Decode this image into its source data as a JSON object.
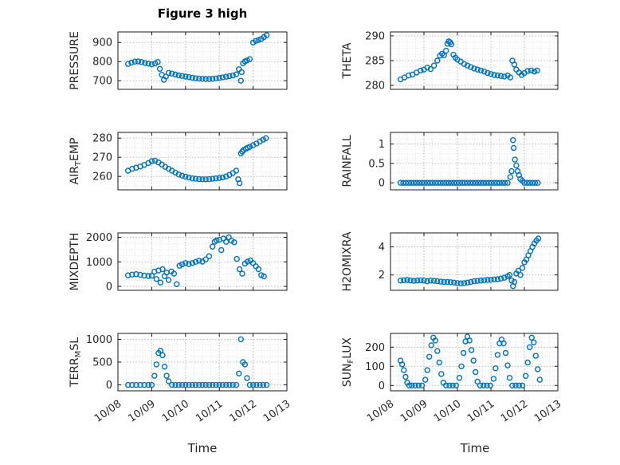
{
  "title": "Figure 3 high",
  "xlabel": "Time",
  "colors": {
    "marker": "#0072BD",
    "axis": "#1a1a1a",
    "tick_text": "#262626",
    "grid_major": "#b5b5b5",
    "grid_minor": "#dedede"
  },
  "x_ticks": {
    "values": [
      0,
      1,
      2,
      3,
      4,
      5
    ],
    "labels": [
      "10/08",
      "10/09",
      "10/10",
      "10/11",
      "10/12",
      "10/13"
    ]
  },
  "xlim": [
    0,
    5
  ],
  "chart_data": [
    {
      "type": "scatter",
      "name": "pressure",
      "ylabel": "PRESSURE",
      "ylim": [
        655,
        955
      ],
      "yticks": [
        700,
        800,
        900
      ],
      "x": [
        0.3,
        0.4,
        0.5,
        0.6,
        0.7,
        0.8,
        0.9,
        1.0,
        1.1,
        1.18,
        1.24,
        1.3,
        1.36,
        1.42,
        1.5,
        1.6,
        1.7,
        1.8,
        1.9,
        2.0,
        2.1,
        2.2,
        2.3,
        2.4,
        2.5,
        2.6,
        2.7,
        2.8,
        2.9,
        3.0,
        3.1,
        3.2,
        3.3,
        3.4,
        3.5,
        3.58,
        3.64,
        3.66,
        3.7,
        3.76,
        3.82,
        3.9,
        4.0,
        4.08,
        4.16,
        4.24,
        4.32,
        4.4
      ],
      "y": [
        788,
        795,
        800,
        801,
        798,
        793,
        789,
        786,
        790,
        798,
        762,
        731,
        705,
        722,
        741,
        737,
        732,
        728,
        725,
        722,
        719,
        716,
        713,
        711,
        710,
        709,
        709,
        710,
        712,
        715,
        718,
        721,
        724,
        727,
        733,
        760,
        700,
        745,
        791,
        801,
        806,
        813,
        899,
        908,
        913,
        918,
        928,
        938
      ]
    },
    {
      "type": "scatter",
      "name": "theta",
      "ylabel": "THETA",
      "ylim": [
        279.2,
        290.8
      ],
      "yticks": [
        280,
        285,
        290
      ],
      "x": [
        0.3,
        0.42,
        0.54,
        0.66,
        0.78,
        0.9,
        1.0,
        1.1,
        1.2,
        1.3,
        1.4,
        1.48,
        1.54,
        1.6,
        1.66,
        1.7,
        1.74,
        1.78,
        1.82,
        1.88,
        1.94,
        2.0,
        2.1,
        2.2,
        2.3,
        2.4,
        2.5,
        2.6,
        2.7,
        2.8,
        2.9,
        3.0,
        3.1,
        3.2,
        3.3,
        3.4,
        3.5,
        3.58,
        3.64,
        3.7,
        3.76,
        3.84,
        3.92,
        4.0,
        4.1,
        4.2,
        4.3,
        4.38
      ],
      "y": [
        281.2,
        281.6,
        282,
        282.2,
        282.6,
        283,
        283.2,
        283.6,
        283.3,
        284,
        285,
        286,
        286.4,
        286.1,
        287,
        288.4,
        288.9,
        288.7,
        288.3,
        286.2,
        285.6,
        285.2,
        284.8,
        284.3,
        284,
        283.7,
        283.4,
        283.2,
        283,
        282.8,
        282.5,
        282.3,
        282.1,
        282,
        281.9,
        281.8,
        282,
        281.6,
        285,
        284.2,
        283.2,
        282.6,
        282.1,
        282.5,
        282.9,
        283,
        282.8,
        283
      ]
    },
    {
      "type": "scatter",
      "name": "air-temp",
      "ylabel": "AIR_{T}EMP",
      "ylim": [
        253,
        283
      ],
      "yticks": [
        260,
        270,
        280
      ],
      "x": [
        0.3,
        0.42,
        0.54,
        0.66,
        0.78,
        0.9,
        1.0,
        1.1,
        1.2,
        1.3,
        1.4,
        1.5,
        1.6,
        1.7,
        1.8,
        1.9,
        2.0,
        2.1,
        2.2,
        2.3,
        2.4,
        2.5,
        2.6,
        2.7,
        2.8,
        2.9,
        3.0,
        3.1,
        3.2,
        3.3,
        3.4,
        3.5,
        3.56,
        3.6,
        3.64,
        3.68,
        3.72,
        3.78,
        3.84,
        3.9,
        4.0,
        4.1,
        4.2,
        4.3,
        4.38
      ],
      "y": [
        263,
        264,
        264.6,
        265.2,
        266,
        267,
        268,
        268.2,
        267.3,
        266.2,
        265,
        264,
        263,
        262,
        261,
        260.4,
        259.9,
        259.4,
        259,
        258.8,
        258.6,
        258.5,
        258.5,
        258.6,
        258.8,
        259,
        259.2,
        259.5,
        260,
        260.8,
        261.8,
        263,
        258.5,
        256.5,
        272,
        273,
        273.8,
        274.4,
        275,
        275.5,
        276.3,
        277.2,
        278.2,
        279.2,
        280
      ]
    },
    {
      "type": "scatter",
      "name": "rainfall",
      "ylabel": "RAINFALL",
      "ylim": [
        -0.18,
        1.3
      ],
      "yticks": [
        0,
        0.5,
        1
      ],
      "x": [
        0.3,
        0.38,
        0.46,
        0.54,
        0.62,
        0.7,
        0.78,
        0.86,
        0.94,
        1.02,
        1.1,
        1.18,
        1.26,
        1.34,
        1.42,
        1.5,
        1.58,
        1.66,
        1.74,
        1.82,
        1.9,
        1.98,
        2.06,
        2.14,
        2.22,
        2.3,
        2.38,
        2.46,
        2.54,
        2.62,
        2.7,
        2.78,
        2.86,
        2.94,
        3.02,
        3.1,
        3.18,
        3.26,
        3.34,
        3.42,
        3.5,
        3.58,
        3.62,
        3.66,
        3.68,
        3.72,
        3.76,
        3.8,
        3.84,
        3.88,
        3.94,
        4.0,
        4.08,
        4.16,
        4.24,
        4.32,
        4.4
      ],
      "y": [
        0,
        0,
        0,
        0,
        0,
        0,
        0,
        0,
        0,
        0,
        0,
        0,
        0,
        0,
        0,
        0,
        0,
        0,
        0,
        0,
        0,
        0,
        0,
        0,
        0,
        0,
        0,
        0,
        0,
        0,
        0,
        0,
        0,
        0,
        0,
        0,
        0,
        0,
        0,
        0,
        0,
        0.15,
        0.3,
        1.1,
        0.9,
        0.6,
        0.45,
        0.3,
        0.2,
        0.1,
        0.05,
        0,
        0,
        0,
        0,
        0,
        0
      ]
    },
    {
      "type": "scatter",
      "name": "mixdepth",
      "ylabel": "MIXDEPTH",
      "ylim": [
        -160,
        2180
      ],
      "yticks": [
        0,
        1000,
        2000
      ],
      "x": [
        0.3,
        0.42,
        0.54,
        0.66,
        0.78,
        0.9,
        1.0,
        1.08,
        1.14,
        1.2,
        1.26,
        1.32,
        1.38,
        1.44,
        1.5,
        1.58,
        1.66,
        1.74,
        1.82,
        1.9,
        2.0,
        2.1,
        2.2,
        2.3,
        2.4,
        2.5,
        2.6,
        2.7,
        2.8,
        2.86,
        2.92,
        3.0,
        3.06,
        3.12,
        3.2,
        3.28,
        3.36,
        3.44,
        3.52,
        3.6,
        3.68,
        3.76,
        3.84,
        3.92,
        4.0,
        4.08,
        4.16,
        4.24,
        4.32
      ],
      "y": [
        450,
        480,
        500,
        470,
        440,
        425,
        435,
        600,
        300,
        650,
        160,
        700,
        420,
        560,
        260,
        610,
        520,
        90,
        840,
        900,
        950,
        910,
        950,
        1000,
        1050,
        1010,
        1100,
        1230,
        1620,
        1820,
        1870,
        1900,
        1480,
        1950,
        1820,
        2000,
        1860,
        1800,
        1120,
        700,
        520,
        930,
        1010,
        1060,
        950,
        820,
        700,
        460,
        410
      ]
    },
    {
      "type": "scatter",
      "name": "h2omixra",
      "ylabel": "H2OMIXRA",
      "ylim": [
        0.9,
        5.0
      ],
      "yticks": [
        2,
        4
      ],
      "x": [
        0.3,
        0.4,
        0.5,
        0.6,
        0.7,
        0.8,
        0.9,
        1.0,
        1.1,
        1.2,
        1.3,
        1.4,
        1.5,
        1.6,
        1.7,
        1.8,
        1.9,
        2.0,
        2.1,
        2.2,
        2.3,
        2.4,
        2.5,
        2.6,
        2.7,
        2.8,
        2.9,
        3.0,
        3.1,
        3.2,
        3.3,
        3.4,
        3.5,
        3.56,
        3.62,
        3.66,
        3.7,
        3.76,
        3.82,
        3.88,
        3.94,
        4.0,
        4.06,
        4.12,
        4.18,
        4.24,
        4.3,
        4.36,
        4.42
      ],
      "y": [
        1.6,
        1.62,
        1.64,
        1.6,
        1.58,
        1.6,
        1.62,
        1.6,
        1.55,
        1.6,
        1.58,
        1.55,
        1.52,
        1.5,
        1.5,
        1.48,
        1.45,
        1.42,
        1.4,
        1.42,
        1.45,
        1.5,
        1.55,
        1.58,
        1.6,
        1.62,
        1.64,
        1.65,
        1.68,
        1.7,
        1.74,
        1.8,
        1.9,
        2.0,
        1.6,
        1.2,
        1.5,
        2.1,
        2.3,
        2.0,
        2.5,
        2.9,
        3.1,
        3.4,
        3.7,
        4.0,
        4.25,
        4.45,
        4.6
      ]
    },
    {
      "type": "scatter",
      "name": "terr-msl",
      "ylabel": "TERR_{M}SL",
      "ylim": [
        -130,
        1130
      ],
      "yticks": [
        0,
        500,
        1000
      ],
      "x": [
        0.3,
        0.42,
        0.54,
        0.66,
        0.78,
        0.9,
        1.0,
        1.08,
        1.14,
        1.2,
        1.26,
        1.32,
        1.38,
        1.44,
        1.5,
        1.6,
        1.7,
        1.8,
        1.9,
        2.0,
        2.1,
        2.2,
        2.3,
        2.4,
        2.5,
        2.6,
        2.7,
        2.8,
        2.9,
        3.0,
        3.1,
        3.2,
        3.3,
        3.4,
        3.5,
        3.58,
        3.64,
        3.7,
        3.76,
        3.82,
        3.9,
        4.0,
        4.1,
        4.2,
        4.3,
        4.4
      ],
      "y": [
        0,
        0,
        0,
        0,
        0,
        0,
        0,
        200,
        450,
        700,
        750,
        650,
        400,
        200,
        80,
        0,
        0,
        0,
        0,
        0,
        0,
        0,
        0,
        0,
        0,
        0,
        0,
        0,
        0,
        0,
        0,
        0,
        0,
        0,
        0,
        250,
        1000,
        500,
        450,
        150,
        0,
        0,
        0,
        0,
        0,
        0
      ]
    },
    {
      "type": "scatter",
      "name": "sun-flux",
      "ylabel": "SUN_{F}LUX",
      "ylim": [
        -28,
        272
      ],
      "yticks": [
        0,
        100,
        200
      ],
      "x": [
        0.3,
        0.35,
        0.4,
        0.45,
        0.5,
        0.56,
        0.64,
        0.74,
        0.84,
        0.94,
        1.04,
        1.1,
        1.16,
        1.22,
        1.28,
        1.34,
        1.4,
        1.46,
        1.52,
        1.58,
        1.66,
        1.76,
        1.86,
        1.96,
        2.06,
        2.12,
        2.18,
        2.24,
        2.3,
        2.36,
        2.42,
        2.48,
        2.54,
        2.6,
        2.68,
        2.78,
        2.88,
        2.98,
        3.08,
        3.14,
        3.2,
        3.26,
        3.32,
        3.38,
        3.44,
        3.5,
        3.56,
        3.64,
        3.74,
        3.84,
        3.94,
        4.04,
        4.1,
        4.16,
        4.22,
        4.28,
        4.34,
        4.4,
        4.46
      ],
      "y": [
        130,
        110,
        80,
        45,
        15,
        0,
        0,
        0,
        0,
        0,
        30,
        80,
        150,
        210,
        250,
        235,
        180,
        120,
        60,
        15,
        0,
        0,
        0,
        0,
        40,
        100,
        170,
        230,
        255,
        235,
        185,
        130,
        70,
        20,
        0,
        0,
        0,
        0,
        35,
        90,
        160,
        220,
        240,
        220,
        170,
        105,
        40,
        0,
        0,
        0,
        0,
        50,
        120,
        200,
        250,
        225,
        155,
        85,
        30
      ]
    }
  ]
}
